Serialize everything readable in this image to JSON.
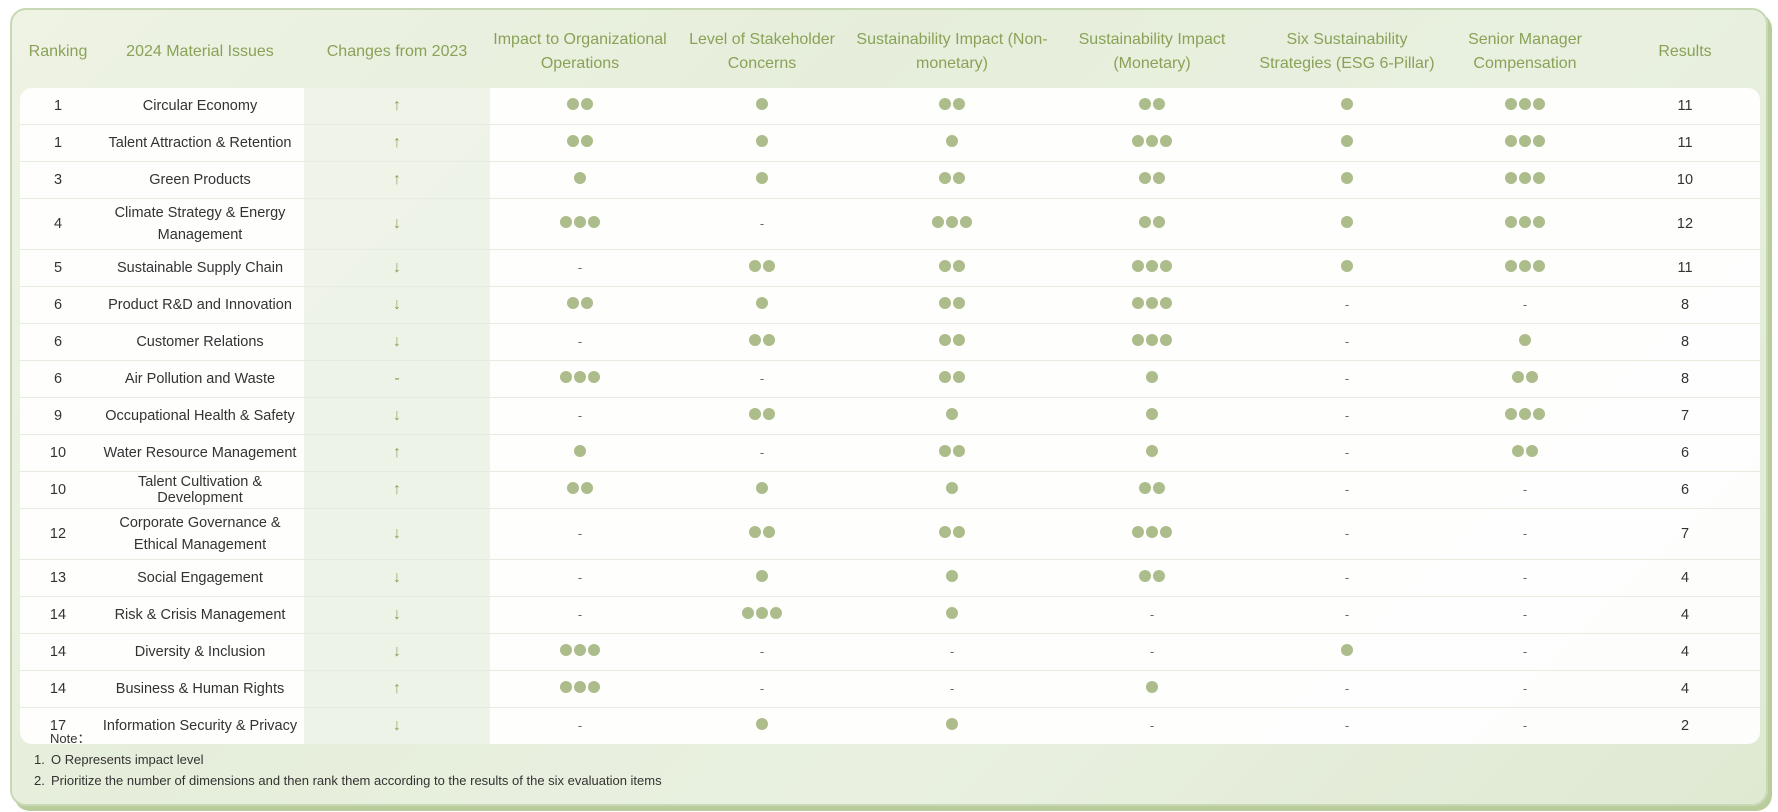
{
  "headers": {
    "ranking": "Ranking",
    "issue": "2024 Material Issues",
    "change": "Changes from 2023",
    "impact_ops": "Impact to Organizational Operations",
    "stakeholder": "Level of Stakeholder Concerns",
    "nonmonetary": "Sustainability Impact (Non-monetary)",
    "monetary": "Sustainability Impact (Monetary)",
    "strategies": "Six Sustainability Strategies (ESG 6-Pillar)",
    "compensation": "Senior Manager Compensation",
    "results": "Results"
  },
  "rows": [
    {
      "rank": "1",
      "issue": "Circular Economy",
      "change": "↑",
      "ops": 2,
      "stake": 1,
      "nonmon": 2,
      "mon": 2,
      "strat": 1,
      "comp": 3,
      "result": "11"
    },
    {
      "rank": "1",
      "issue": "Talent Attraction & Retention",
      "change": "↑",
      "ops": 2,
      "stake": 1,
      "nonmon": 1,
      "mon": 3,
      "strat": 1,
      "comp": 3,
      "result": "11"
    },
    {
      "rank": "3",
      "issue": "Green Products",
      "change": "↑",
      "ops": 1,
      "stake": 1,
      "nonmon": 2,
      "mon": 2,
      "strat": 1,
      "comp": 3,
      "result": "10"
    },
    {
      "rank": "4",
      "issue": "Climate Strategy & Energy Management",
      "change": "↓",
      "ops": 3,
      "stake": 0,
      "nonmon": 3,
      "mon": 2,
      "strat": 1,
      "comp": 3,
      "result": "12"
    },
    {
      "rank": "5",
      "issue": "Sustainable Supply Chain",
      "change": "↓",
      "ops": 0,
      "stake": 2,
      "nonmon": 2,
      "mon": 3,
      "strat": 1,
      "comp": 3,
      "result": "11"
    },
    {
      "rank": "6",
      "issue": "Product R&D and Innovation",
      "change": "↓",
      "ops": 2,
      "stake": 1,
      "nonmon": 2,
      "mon": 3,
      "strat": 0,
      "comp": 0,
      "result": "8"
    },
    {
      "rank": "6",
      "issue": "Customer Relations",
      "change": "↓",
      "ops": 0,
      "stake": 2,
      "nonmon": 2,
      "mon": 3,
      "strat": 0,
      "comp": 1,
      "result": "8"
    },
    {
      "rank": "6",
      "issue": "Air Pollution and Waste",
      "change": "-",
      "ops": 3,
      "stake": 0,
      "nonmon": 2,
      "mon": 1,
      "strat": 0,
      "comp": 2,
      "result": "8"
    },
    {
      "rank": "9",
      "issue": "Occupational Health & Safety",
      "change": "↓",
      "ops": 0,
      "stake": 2,
      "nonmon": 1,
      "mon": 1,
      "strat": 0,
      "comp": 3,
      "result": "7"
    },
    {
      "rank": "10",
      "issue": "Water Resource Management",
      "change": "↑",
      "ops": 1,
      "stake": 0,
      "nonmon": 2,
      "mon": 1,
      "strat": 0,
      "comp": 2,
      "result": "6"
    },
    {
      "rank": "10",
      "issue": "Talent Cultivation & Development",
      "change": "↑",
      "ops": 2,
      "stake": 1,
      "nonmon": 1,
      "mon": 2,
      "strat": 0,
      "comp": 0,
      "result": "6"
    },
    {
      "rank": "12",
      "issue": "Corporate Governance & Ethical Management",
      "change": "↓",
      "ops": 0,
      "stake": 2,
      "nonmon": 2,
      "mon": 3,
      "strat": 0,
      "comp": 0,
      "result": "7"
    },
    {
      "rank": "13",
      "issue": "Social Engagement",
      "change": "↓",
      "ops": 0,
      "stake": 1,
      "nonmon": 1,
      "mon": 2,
      "strat": 0,
      "comp": 0,
      "result": "4"
    },
    {
      "rank": "14",
      "issue": "Risk & Crisis Management",
      "change": "↓",
      "ops": 0,
      "stake": 3,
      "nonmon": 1,
      "mon": 0,
      "strat": 0,
      "comp": 0,
      "result": "4"
    },
    {
      "rank": "14",
      "issue": "Diversity & Inclusion",
      "change": "↓",
      "ops": 3,
      "stake": 0,
      "nonmon": 0,
      "mon": 0,
      "strat": 1,
      "comp": 0,
      "result": "4"
    },
    {
      "rank": "14",
      "issue": "Business & Human Rights",
      "change": "↑",
      "ops": 3,
      "stake": 0,
      "nonmon": 0,
      "mon": 1,
      "strat": 0,
      "comp": 0,
      "result": "4"
    },
    {
      "rank": "17",
      "issue": "Information Security & Privacy",
      "change": "↓",
      "ops": 0,
      "stake": 1,
      "nonmon": 1,
      "mon": 0,
      "strat": 0,
      "comp": 0,
      "result": "2"
    }
  ],
  "notes": {
    "title": "Note：",
    "items": [
      {
        "num": "1.",
        "text": "O Represents impact level"
      },
      {
        "num": "2.",
        "text": "Prioritize the number of dimensions and then rank them according to the results of the six evaluation items"
      }
    ]
  },
  "empty_mark": "-",
  "colors": {
    "accent": "#8aa257",
    "dot": "#adbc8b"
  }
}
